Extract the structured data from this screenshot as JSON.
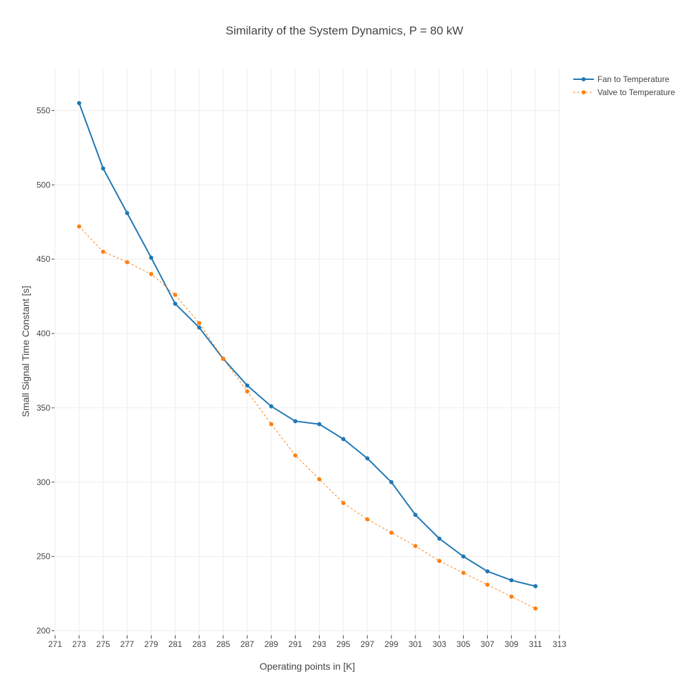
{
  "chart_data": {
    "type": "line",
    "title": "Similarity of the System Dynamics, P = 80 kW",
    "xlabel": "Operating points in [K]",
    "ylabel": "Small Signal Time Constant [s]",
    "xlim": [
      271,
      313
    ],
    "ylim": [
      197,
      578
    ],
    "x_ticks": [
      271,
      273,
      275,
      277,
      279,
      281,
      283,
      285,
      287,
      289,
      291,
      293,
      295,
      297,
      299,
      301,
      303,
      305,
      307,
      309,
      311,
      313
    ],
    "y_ticks": [
      200,
      250,
      300,
      350,
      400,
      450,
      500,
      550
    ],
    "x": [
      273,
      275,
      277,
      279,
      281,
      283,
      285,
      287,
      289,
      291,
      293,
      295,
      297,
      299,
      301,
      303,
      305,
      307,
      309,
      311
    ],
    "series": [
      {
        "name": "Fan to Temperature",
        "color": "#1f77b4",
        "line": "solid",
        "values": [
          555,
          511,
          481,
          451,
          420,
          404,
          383,
          365,
          351,
          341,
          339,
          329,
          316,
          300,
          278,
          262,
          250,
          240,
          234,
          230
        ]
      },
      {
        "name": "Valve to Temperature",
        "color": "#ff7f0e",
        "line": "dashed",
        "values": [
          472,
          455,
          448,
          440,
          426,
          407,
          383,
          361,
          339,
          318,
          302,
          286,
          275,
          266,
          257,
          247,
          239,
          231,
          223,
          215
        ]
      }
    ],
    "grid": true,
    "legend_position": "top-right"
  }
}
